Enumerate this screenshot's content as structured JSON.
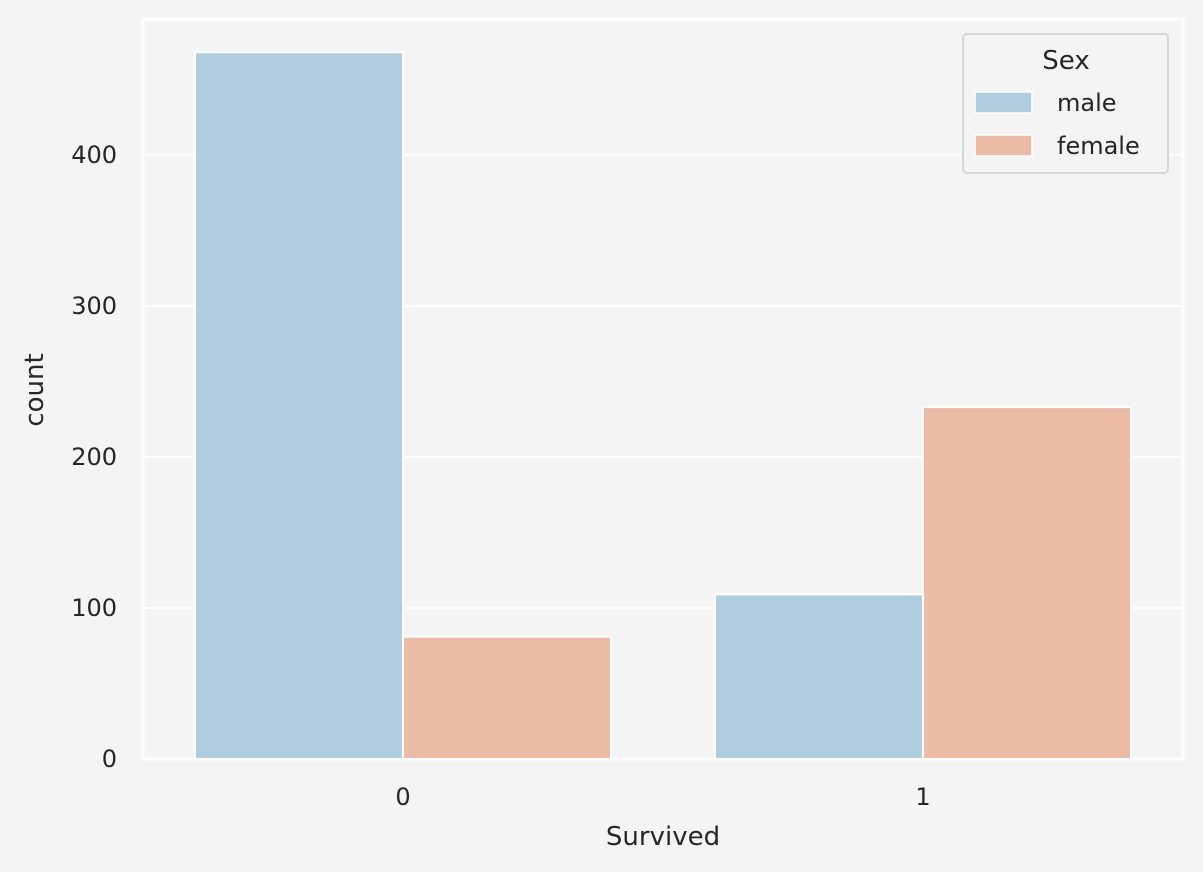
{
  "chart_data": {
    "type": "bar",
    "categories": [
      "0",
      "1"
    ],
    "series": [
      {
        "name": "male",
        "values": [
          468,
          109
        ],
        "color": "#b0cde0"
      },
      {
        "name": "female",
        "values": [
          81,
          233
        ],
        "color": "#ebbba5"
      }
    ],
    "xlabel": "Survived",
    "ylabel": "count",
    "ylim": [
      0,
      490
    ],
    "yticks": [
      0,
      100,
      200,
      300,
      400
    ],
    "legend": {
      "title": "Sex",
      "placement": "top-right"
    },
    "grid": true
  },
  "colors": {
    "plot_background": "#f4f4f4",
    "grid": "#ffffff",
    "text": "#262626"
  }
}
